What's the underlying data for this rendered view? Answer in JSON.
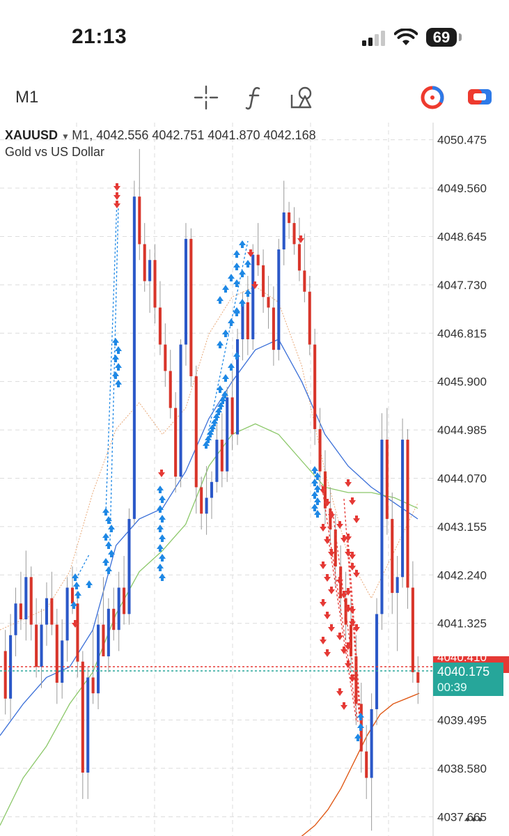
{
  "status_bar": {
    "time": "21:13",
    "battery": "69",
    "signal_icon": "cellular-signal-icon",
    "wifi_icon": "wifi-icon"
  },
  "toolbar": {
    "timeframe": "M1",
    "icons": [
      "crosshair-icon",
      "indicators-f-icon",
      "objects-icon",
      "trade-timer-icon",
      "trade-toggle-icon"
    ]
  },
  "chart": {
    "symbol": "XAUUSD",
    "timeframe": "M1,",
    "ohlc": "4042.556 4042.751 4041.870 4042.168",
    "description": "Gold vs US Dollar",
    "current_price": "4040.175",
    "countdown": "00:39",
    "partially_hidden_label": "4040.410",
    "colors": {
      "bull": "#2b58c8",
      "bear": "#d8352a",
      "price_tag": "#26a69a",
      "ask_tag": "#e53935",
      "ma_fast": "#e8a878",
      "ma_blue": "#3a6fd8",
      "ma_green": "#8cc86a",
      "ma_slow": "#e05a18",
      "buy_arrow": "#1e88e5",
      "sell_arrow": "#e53935"
    }
  },
  "chart_data": {
    "type": "candlestick",
    "y_ticks": [
      4050.475,
      4049.56,
      4048.645,
      4047.73,
      4046.815,
      4045.9,
      4044.985,
      4044.07,
      4043.155,
      4042.24,
      4041.325,
      4039.495,
      4038.58,
      4037.665
    ],
    "ylim": [
      4037.3,
      4050.8
    ],
    "grid": true,
    "candles_ohlc": [
      [
        4040.8,
        4041.2,
        4039.6,
        4039.9
      ],
      [
        4039.9,
        4041.5,
        4039.5,
        4041.1
      ],
      [
        4041.1,
        4042.0,
        4040.7,
        4041.7
      ],
      [
        4041.7,
        4042.3,
        4041.2,
        4041.4
      ],
      [
        4041.4,
        4042.7,
        4041.0,
        4042.2
      ],
      [
        4042.2,
        4042.4,
        4041.0,
        4041.3
      ],
      [
        4041.3,
        4041.8,
        4040.3,
        4040.5
      ],
      [
        4040.5,
        4041.6,
        4040.1,
        4041.3
      ],
      [
        4041.3,
        4042.1,
        4040.9,
        4041.8
      ],
      [
        4041.8,
        4042.3,
        4041.1,
        4041.3
      ],
      [
        4041.3,
        4041.6,
        4039.8,
        4040.2
      ],
      [
        4040.2,
        4041.4,
        4039.9,
        4041.0
      ],
      [
        4041.0,
        4042.2,
        4040.6,
        4042.0
      ],
      [
        4042.0,
        4042.4,
        4041.5,
        4041.7
      ],
      [
        4041.7,
        4041.9,
        4040.3,
        4040.6
      ],
      [
        4040.6,
        4040.8,
        4038.0,
        4038.5
      ],
      [
        4038.5,
        4040.5,
        4038.0,
        4040.3
      ],
      [
        4040.3,
        4041.2,
        4039.8,
        4040.0
      ],
      [
        4040.0,
        4041.5,
        4039.7,
        4041.3
      ],
      [
        4041.3,
        4042.2,
        4040.9,
        4040.7
      ],
      [
        4040.7,
        4041.8,
        4040.4,
        4041.6
      ],
      [
        4041.6,
        4042.0,
        4041.0,
        4041.2
      ],
      [
        4041.2,
        4042.3,
        4040.8,
        4042.0
      ],
      [
        4042.0,
        4042.6,
        4041.3,
        4041.5
      ],
      [
        4041.5,
        4043.5,
        4041.3,
        4043.3
      ],
      [
        4043.3,
        4049.7,
        4043.2,
        4049.4
      ],
      [
        4049.4,
        4050.3,
        4048.2,
        4048.5
      ],
      [
        4048.5,
        4048.9,
        4047.6,
        4047.8
      ],
      [
        4047.8,
        4048.4,
        4047.2,
        4048.2
      ],
      [
        4048.2,
        4048.5,
        4047.0,
        4047.3
      ],
      [
        4047.3,
        4047.8,
        4046.4,
        4046.6
      ],
      [
        4046.6,
        4047.0,
        4045.8,
        4046.1
      ],
      [
        4046.1,
        4046.5,
        4045.2,
        4045.4
      ],
      [
        4045.4,
        4045.7,
        4043.8,
        4044.1
      ],
      [
        4044.1,
        4046.7,
        4043.9,
        4046.6
      ],
      [
        4046.6,
        4048.9,
        4046.2,
        4048.6
      ],
      [
        4048.6,
        4048.8,
        4045.8,
        4046.0
      ],
      [
        4046.0,
        4046.2,
        4043.4,
        4043.9
      ],
      [
        4043.9,
        4044.1,
        4043.1,
        4043.4
      ],
      [
        4043.4,
        4044.3,
        4043.0,
        4043.7
      ],
      [
        4043.7,
        4044.2,
        4043.3,
        4044.0
      ],
      [
        4044.0,
        4045.1,
        4043.8,
        4044.8
      ],
      [
        4044.8,
        4045.3,
        4043.9,
        4044.2
      ],
      [
        4044.2,
        4045.8,
        4044.0,
        4045.6
      ],
      [
        4045.6,
        4046.1,
        4044.6,
        4044.9
      ],
      [
        4044.9,
        4046.9,
        4044.7,
        4046.7
      ],
      [
        4046.7,
        4047.6,
        4046.3,
        4047.4
      ],
      [
        4047.4,
        4047.9,
        4046.4,
        4046.7
      ],
      [
        4046.7,
        4048.5,
        4046.5,
        4048.3
      ],
      [
        4048.3,
        4048.9,
        4047.9,
        4048.1
      ],
      [
        4048.1,
        4048.4,
        4047.2,
        4047.5
      ],
      [
        4047.5,
        4047.9,
        4046.9,
        4047.3
      ],
      [
        4047.3,
        4047.7,
        4046.2,
        4046.5
      ],
      [
        4046.5,
        4048.6,
        4046.3,
        4048.4
      ],
      [
        4048.4,
        4049.7,
        4048.1,
        4049.1
      ],
      [
        4049.1,
        4049.3,
        4048.6,
        4048.9
      ],
      [
        4048.9,
        4049.2,
        4048.3,
        4048.5
      ],
      [
        4048.5,
        4049.0,
        4047.8,
        4048.0
      ],
      [
        4048.0,
        4048.7,
        4047.4,
        4047.6
      ],
      [
        4047.6,
        4047.9,
        4046.4,
        4046.6
      ],
      [
        4046.6,
        4046.9,
        4044.7,
        4045.0
      ],
      [
        4045.0,
        4045.4,
        4043.9,
        4044.2
      ],
      [
        4044.2,
        4044.6,
        4043.2,
        4043.5
      ],
      [
        4043.5,
        4043.9,
        4042.8,
        4043.1
      ],
      [
        4043.1,
        4043.4,
        4042.0,
        4042.4
      ],
      [
        4042.4,
        4042.8,
        4041.5,
        4041.8
      ],
      [
        4041.8,
        4042.3,
        4041.0,
        4041.3
      ],
      [
        4041.3,
        4041.8,
        4040.4,
        4040.7
      ],
      [
        4040.7,
        4041.1,
        4039.4,
        4039.8
      ],
      [
        4039.8,
        4040.2,
        4038.5,
        4038.9
      ],
      [
        4038.9,
        4039.4,
        4038.0,
        4038.4
      ],
      [
        4038.4,
        4040.0,
        4037.4,
        4039.7
      ],
      [
        4039.7,
        4041.8,
        4039.4,
        4041.5
      ],
      [
        4041.5,
        4045.3,
        4041.2,
        4044.8
      ],
      [
        4044.8,
        4045.4,
        4043.0,
        4043.3
      ],
      [
        4043.3,
        4043.8,
        4041.5,
        4041.9
      ],
      [
        4041.9,
        4042.6,
        4040.8,
        4042.2
      ],
      [
        4042.2,
        4045.2,
        4042.0,
        4044.8
      ],
      [
        4044.8,
        4045.0,
        4041.6,
        4042.0
      ],
      [
        4042.0,
        4042.5,
        4040.2,
        4040.4
      ],
      [
        4040.4,
        4040.7,
        4039.8,
        4040.2
      ]
    ],
    "moving_averages": [
      {
        "color": "#e8a878",
        "values": [
          4041.2,
          4041.4,
          4041.6,
          4042.3,
          4043.8,
          4045.0,
          4045.5,
          4044.9,
          4045.4,
          4046.8,
          4047.5,
          4047.7,
          4047.4,
          4046.2,
          4044.2,
          4042.6,
          4041.8,
          4042.7,
          4043.6
        ]
      },
      {
        "color": "#3a6fd8",
        "values": [
          4039.2,
          4039.8,
          4040.3,
          4040.5,
          4041.2,
          4042.8,
          4043.3,
          4043.5,
          4044.2,
          4045.2,
          4045.9,
          4046.5,
          4046.7,
          4045.9,
          4044.9,
          4044.3,
          4043.9,
          4043.6,
          4043.3
        ]
      },
      {
        "color": "#8cc86a",
        "values": [
          4037.5,
          4038.4,
          4039.0,
          4039.8,
          4040.4,
          4041.5,
          4042.3,
          4042.7,
          4043.2,
          4044.3,
          4044.9,
          4045.1,
          4044.9,
          4044.4,
          4043.9,
          4043.8,
          4043.8,
          4043.7,
          4043.5
        ]
      },
      {
        "color": "#e05a18",
        "values": [
          4037.0,
          4037.0,
          4037.0,
          4037.0,
          4037.1,
          4037.3,
          4037.5,
          4037.8,
          4038.2,
          4038.7,
          4039.2,
          4039.6,
          4039.8,
          4039.9,
          4040.0
        ]
      }
    ]
  }
}
